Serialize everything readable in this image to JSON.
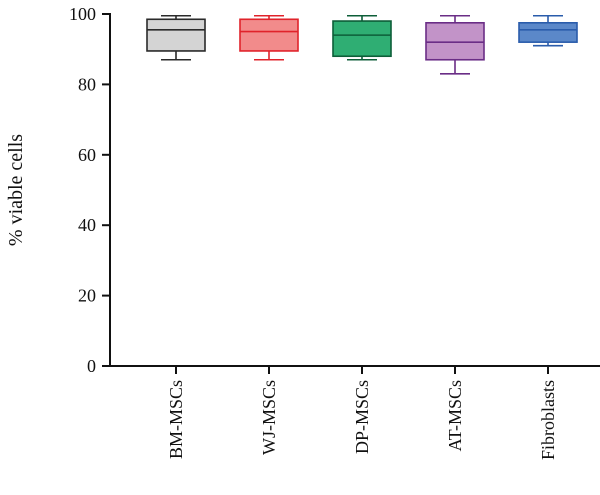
{
  "chart_data": {
    "type": "box",
    "ylabel": "% viable cells",
    "xlabel": "",
    "ylim": [
      0,
      100
    ],
    "yticks": [
      0,
      20,
      40,
      60,
      80,
      100
    ],
    "grid": false,
    "categories": [
      "BM-MSCs",
      "WJ-MSCs",
      "DP-MSCs",
      "AT-MSCs",
      "Fibroblasts"
    ],
    "boxes": [
      {
        "category": "BM-MSCs",
        "min": 87,
        "q1": 89.5,
        "median": 95.5,
        "q3": 98.5,
        "max": 99.5,
        "fill": "#d4d4d4",
        "stroke": "#2a2a2a"
      },
      {
        "category": "WJ-MSCs",
        "min": 87,
        "q1": 89.5,
        "median": 95.0,
        "q3": 98.5,
        "max": 99.5,
        "fill": "#f28b8b",
        "stroke": "#e0232b"
      },
      {
        "category": "DP-MSCs",
        "min": 87,
        "q1": 88.0,
        "median": 94.0,
        "q3": 98.0,
        "max": 99.5,
        "fill": "#2fae73",
        "stroke": "#0d5e38"
      },
      {
        "category": "AT-MSCs",
        "min": 83,
        "q1": 87.0,
        "median": 92.0,
        "q3": 97.5,
        "max": 99.5,
        "fill": "#c293c8",
        "stroke": "#6a2d86"
      },
      {
        "category": "Fibroblasts",
        "min": 91,
        "q1": 92.0,
        "median": 95.5,
        "q3": 97.5,
        "max": 99.5,
        "fill": "#5b88c9",
        "stroke": "#2a5cab"
      }
    ]
  }
}
